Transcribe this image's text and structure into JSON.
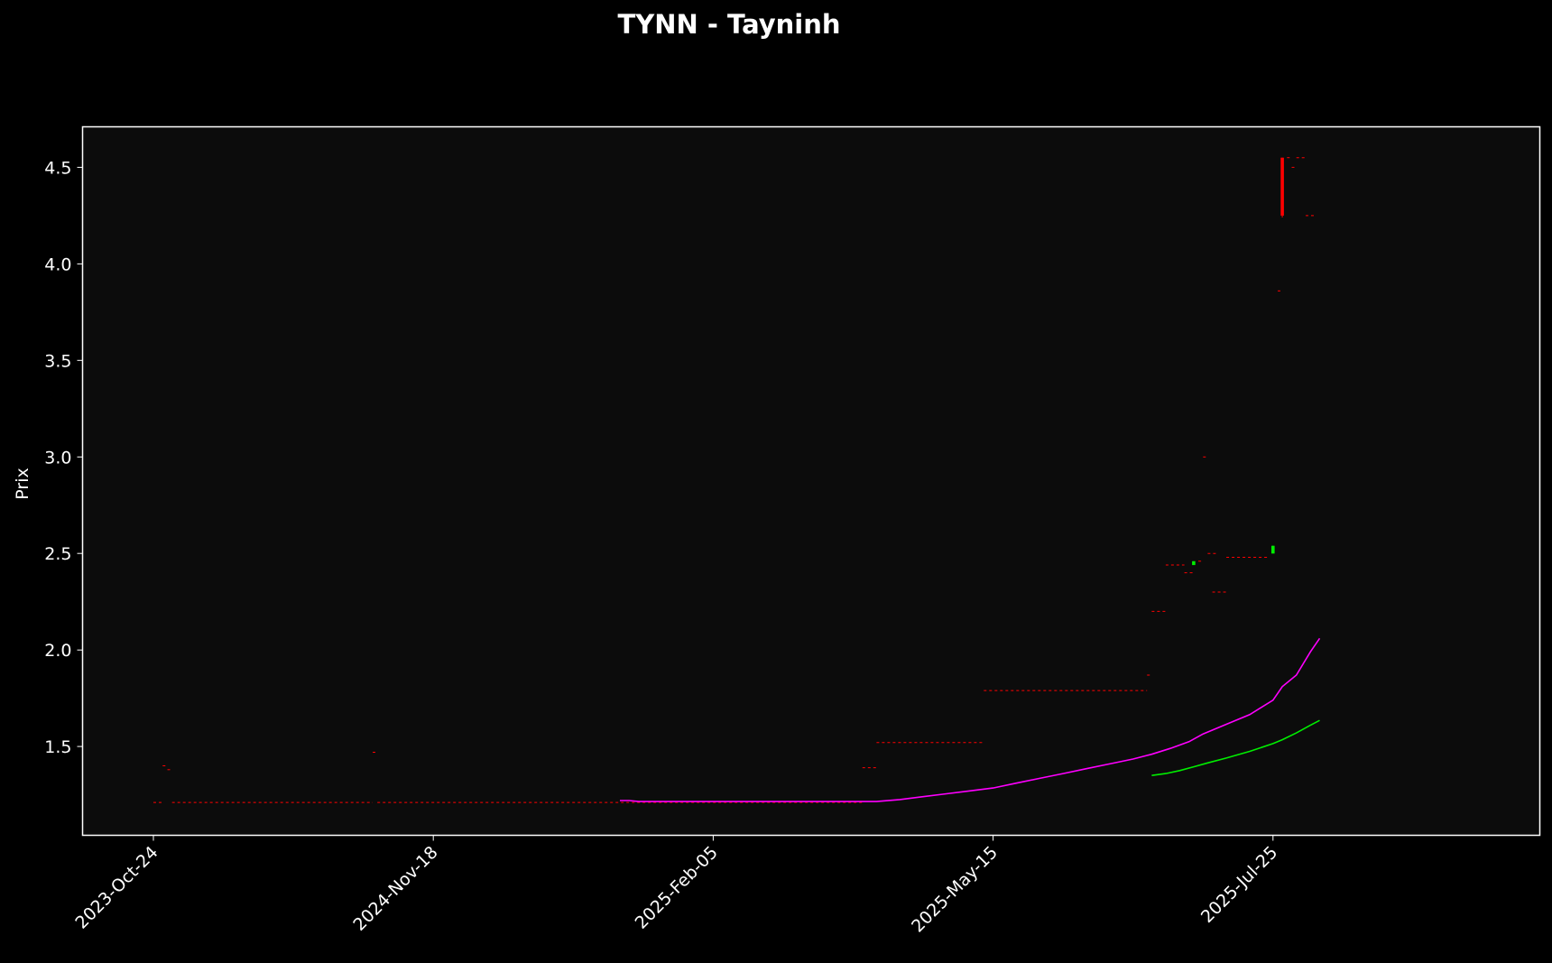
{
  "chart_data": {
    "type": "candlestick",
    "title": "TYNN - Tayninh",
    "xlabel": "",
    "ylabel": "Prix",
    "ylim": [
      1.04,
      4.71
    ],
    "x_tick_labels": [
      "2023-Oct-24",
      "2024-Nov-18",
      "2025-Feb-05",
      "2025-May-15",
      "2025-Jul-25"
    ],
    "y_ticks": [
      1.5,
      2.0,
      2.5,
      3.0,
      3.5,
      4.0,
      4.5
    ],
    "y_tick_labels": [
      "1.5",
      "2.0",
      "2.5",
      "3.0",
      "3.5",
      "4.0",
      "4.5"
    ],
    "grid": false,
    "colors": {
      "background": "#000000",
      "plot_background": "#0c0c0c",
      "frame": "#ffffff",
      "down_candle": "#ff0000",
      "up_candle": "#00ee00",
      "ma_long": "#ff00ff",
      "ma_short": "#00ee00"
    },
    "price_levels": [
      {
        "from": 0,
        "to": 2,
        "value": 1.21
      },
      {
        "from": 2,
        "to": 3,
        "value": 1.4
      },
      {
        "from": 3,
        "to": 4,
        "value": 1.38
      },
      {
        "from": 4,
        "to": 47,
        "value": 1.21
      },
      {
        "from": 47,
        "to": 48,
        "value": 1.47
      },
      {
        "from": 48,
        "to": 152,
        "value": 1.21
      },
      {
        "from": 152,
        "to": 155,
        "value": 1.39
      },
      {
        "from": 155,
        "to": 178,
        "value": 1.52
      },
      {
        "from": 178,
        "to": 213,
        "value": 1.79
      },
      {
        "from": 213,
        "to": 214,
        "value": 1.87
      },
      {
        "from": 214,
        "to": 217,
        "value": 2.2
      },
      {
        "from": 217,
        "to": 221,
        "value": 2.44
      },
      {
        "from": 221,
        "to": 223,
        "value": 2.4
      },
      {
        "from": 224,
        "to": 225,
        "value": 2.46
      },
      {
        "from": 225,
        "to": 226,
        "value": 3.0
      },
      {
        "from": 226,
        "to": 228,
        "value": 2.5
      },
      {
        "from": 227,
        "to": 230,
        "value": 2.3
      },
      {
        "from": 230,
        "to": 239,
        "value": 2.48
      },
      {
        "from": 241,
        "to": 242,
        "value": 3.86
      },
      {
        "from": 243,
        "to": 244,
        "value": 4.55
      },
      {
        "from": 244,
        "to": 245,
        "value": 4.5
      },
      {
        "from": 245,
        "to": 247,
        "value": 4.55
      },
      {
        "from": 247,
        "to": 249,
        "value": 4.25
      }
    ],
    "candles": [
      {
        "x": 223,
        "open": 2.44,
        "close": 2.46,
        "high": 2.46,
        "low": 2.44,
        "direction": "up"
      },
      {
        "x": 240,
        "open": 2.5,
        "close": 2.54,
        "high": 2.54,
        "low": 2.5,
        "direction": "up"
      },
      {
        "x": 242,
        "open": 4.55,
        "close": 4.25,
        "high": 4.55,
        "low": 4.24,
        "direction": "down"
      }
    ],
    "series": [
      {
        "x": [
          100,
          102,
          104,
          110,
          120,
          130,
          140,
          145,
          150,
          155,
          160,
          165,
          170,
          175,
          180,
          185,
          190,
          195,
          200,
          205,
          210,
          214,
          218,
          222,
          225,
          230,
          235,
          240,
          242,
          245,
          248,
          250
        ],
        "values": [
          1.22,
          1.22,
          1.215,
          1.215,
          1.215,
          1.215,
          1.215,
          1.215,
          1.215,
          1.215,
          1.225,
          1.24,
          1.255,
          1.27,
          1.285,
          1.31,
          1.335,
          1.36,
          1.385,
          1.41,
          1.435,
          1.46,
          1.49,
          1.525,
          1.565,
          1.615,
          1.665,
          1.74,
          1.81,
          1.87,
          1.99,
          2.06
        ]
      },
      {
        "x": [
          214,
          217,
          220,
          223,
          226,
          230,
          235,
          240,
          242,
          245,
          248,
          250
        ],
        "values": [
          1.35,
          1.36,
          1.375,
          1.395,
          1.415,
          1.44,
          1.475,
          1.515,
          1.535,
          1.57,
          1.61,
          1.635
        ]
      }
    ]
  }
}
